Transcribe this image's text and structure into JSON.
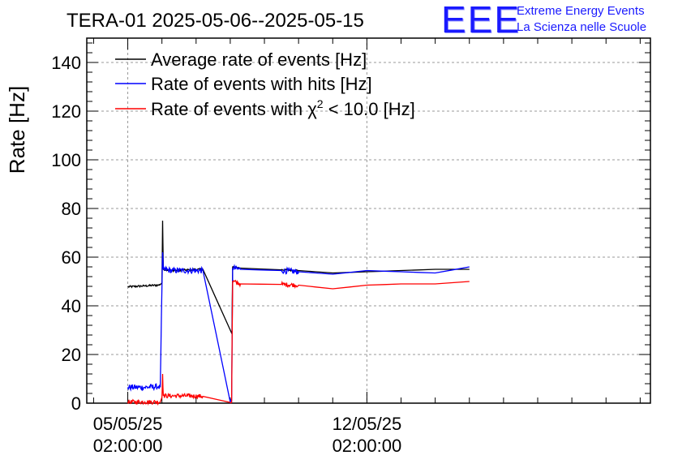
{
  "logo": {
    "mark": "EEE",
    "line1": "Extreme Energy Events",
    "line2": "La Scienza nelle Scuole"
  },
  "chart_data": {
    "type": "line",
    "title": "TERA-01 2025-05-06--2025-05-15",
    "ylabel": "Rate [Hz]",
    "xlabel": "",
    "ylim": [
      0,
      150
    ],
    "xlim_days": [
      -1.2,
      15.3
    ],
    "grid": true,
    "legend_position": "top-left",
    "yticks": [
      0,
      20,
      40,
      60,
      80,
      100,
      120,
      140
    ],
    "xticks": [
      {
        "day": 0,
        "line1": "05/05/25",
        "line2": "02:00:00"
      },
      {
        "day": 7,
        "line1": "12/05/25",
        "line2": "02:00:00"
      }
    ],
    "legend": [
      {
        "label": "Average rate of events [Hz]",
        "color": "#000000"
      },
      {
        "label": "Rate of events with hits [Hz]",
        "color": "#0000ff"
      },
      {
        "label_pre": "Rate of events with ",
        "label_chi": "χ",
        "label_sup": "2",
        "label_post": " < 10.0 [Hz]",
        "color": "#ff0000"
      }
    ],
    "series": [
      {
        "name": "Average rate of events [Hz]",
        "color": "#000000",
        "noise": 0.4,
        "points": [
          [
            0.0,
            47.8
          ],
          [
            0.5,
            48.2
          ],
          [
            0.9,
            48.5
          ],
          [
            0.95,
            48.8
          ],
          [
            1.0,
            49.5
          ],
          [
            1.02,
            75
          ],
          [
            1.04,
            55
          ],
          [
            1.3,
            54.5
          ],
          [
            1.8,
            54.8
          ],
          [
            2.2,
            55
          ],
          [
            3.05,
            28.5
          ],
          [
            3.07,
            56
          ],
          [
            3.3,
            55.5
          ],
          [
            4.5,
            54.8
          ],
          [
            5.0,
            54.5
          ],
          [
            6.0,
            53.5
          ],
          [
            7.0,
            54
          ],
          [
            8.0,
            54.5
          ],
          [
            9.0,
            55
          ],
          [
            10.0,
            55
          ]
        ]
      },
      {
        "name": "Rate of events with hits [Hz]",
        "color": "#0000ff",
        "noise": 1.2,
        "points": [
          [
            0.0,
            6.5
          ],
          [
            0.5,
            6.5
          ],
          [
            0.9,
            6.8
          ],
          [
            0.95,
            6.5
          ],
          [
            1.0,
            48
          ],
          [
            1.02,
            62
          ],
          [
            1.04,
            55
          ],
          [
            1.3,
            54.5
          ],
          [
            1.8,
            54.5
          ],
          [
            2.2,
            54.5
          ],
          [
            3.0,
            0.5
          ],
          [
            3.04,
            0.5
          ],
          [
            3.07,
            55.5
          ],
          [
            3.3,
            55
          ],
          [
            4.5,
            54.5
          ],
          [
            5.0,
            54
          ],
          [
            6.0,
            53
          ],
          [
            7.0,
            54.5
          ],
          [
            8.0,
            54
          ],
          [
            9.0,
            53.5
          ],
          [
            10.0,
            56
          ]
        ]
      },
      {
        "name": "Rate of events with χ2 < 10.0 [Hz]",
        "color": "#ff0000",
        "noise": 0.9,
        "points": [
          [
            0.0,
            0.5
          ],
          [
            0.5,
            0.5
          ],
          [
            0.95,
            0.5
          ],
          [
            1.0,
            2.5
          ],
          [
            1.02,
            12
          ],
          [
            1.04,
            3
          ],
          [
            1.3,
            3
          ],
          [
            1.8,
            3
          ],
          [
            2.2,
            2.8
          ],
          [
            3.0,
            0.3
          ],
          [
            3.04,
            0.3
          ],
          [
            3.07,
            50
          ],
          [
            3.3,
            49
          ],
          [
            4.5,
            48.8
          ],
          [
            5.0,
            48.5
          ],
          [
            6.0,
            47
          ],
          [
            7.0,
            48.5
          ],
          [
            8.0,
            49
          ],
          [
            9.0,
            49
          ],
          [
            10.0,
            50
          ]
        ]
      }
    ]
  }
}
